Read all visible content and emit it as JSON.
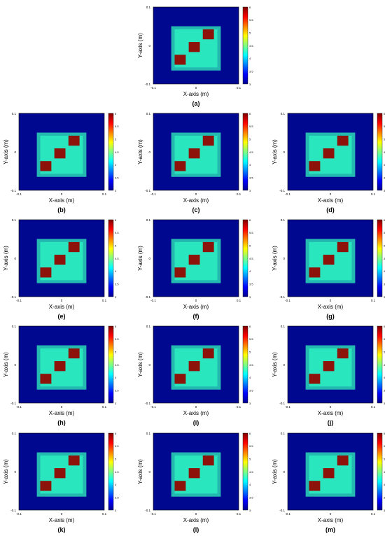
{
  "figure": {
    "colors": {
      "background_field": "#00088f",
      "object_region": "#29e6bf",
      "object_border": "#24b9b0",
      "diagonal_blocks": "#8d1209",
      "axis_text": "#000000"
    },
    "colorbar": {
      "ticks": [
        "6",
        "5.5",
        "5",
        "4.5",
        "4",
        "3.5",
        "3"
      ],
      "palette": [
        "#00008f",
        "#0000ff",
        "#0080ff",
        "#00ffff",
        "#80ff80",
        "#ffff00",
        "#ff8000",
        "#ff0000",
        "#800000"
      ]
    }
  },
  "chart_data": [
    {
      "type": "heatmap",
      "panel": "a",
      "caption": "(a)",
      "xlabel": "X-axis (m)",
      "ylabel": "Y-axis (m)",
      "xlim": [
        -0.1,
        0.1
      ],
      "ylim": [
        -0.1,
        0.1
      ],
      "xticks": [
        "-0.1",
        "0",
        "0.1"
      ],
      "yticks": [
        "0.1",
        "0",
        "-0.1"
      ],
      "colorbar_range": [
        3,
        6
      ]
    },
    {
      "type": "heatmap",
      "panel": "b",
      "caption": "(b)",
      "xlabel": "X-axis (m)",
      "ylabel": "Y-axis (m)",
      "xlim": [
        -0.1,
        0.1
      ],
      "ylim": [
        -0.1,
        0.1
      ],
      "xticks": [
        "-0.1",
        "0",
        "0.1"
      ],
      "yticks": [
        "0.1",
        "0",
        "-0.1"
      ],
      "colorbar_range": [
        3,
        6
      ]
    },
    {
      "type": "heatmap",
      "panel": "c",
      "caption": "(c)",
      "xlabel": "X-axis (m)",
      "ylabel": "Y-axis (m)",
      "xlim": [
        -0.1,
        0.1
      ],
      "ylim": [
        -0.1,
        0.1
      ],
      "xticks": [
        "-0.1",
        "0",
        "0.1"
      ],
      "yticks": [
        "0.1",
        "0",
        "-0.1"
      ],
      "colorbar_range": [
        3,
        6
      ]
    },
    {
      "type": "heatmap",
      "panel": "d",
      "caption": "(d)",
      "xlabel": "X-axis (m)",
      "ylabel": "Y-axis (m)",
      "xlim": [
        -0.1,
        0.1
      ],
      "ylim": [
        -0.1,
        0.1
      ],
      "xticks": [
        "-0.1",
        "0",
        "0.1"
      ],
      "yticks": [
        "0.1",
        "0",
        "-0.1"
      ],
      "colorbar_range": [
        3,
        6
      ]
    },
    {
      "type": "heatmap",
      "panel": "e",
      "caption": "(e)",
      "xlabel": "X-axis (m)",
      "ylabel": "Y-axis (m)",
      "xlim": [
        -0.1,
        0.1
      ],
      "ylim": [
        -0.1,
        0.1
      ],
      "xticks": [
        "-0.1",
        "0",
        "0.1"
      ],
      "yticks": [
        "0.1",
        "0",
        "-0.1"
      ],
      "colorbar_range": [
        3,
        6
      ]
    },
    {
      "type": "heatmap",
      "panel": "f",
      "caption": "(f)",
      "xlabel": "X-axis (m)",
      "ylabel": "Y-axis (m)",
      "xlim": [
        -0.1,
        0.1
      ],
      "ylim": [
        -0.1,
        0.1
      ],
      "xticks": [
        "-0.1",
        "0",
        "0.1"
      ],
      "yticks": [
        "0.1",
        "0",
        "-0.1"
      ],
      "colorbar_range": [
        3,
        6
      ]
    },
    {
      "type": "heatmap",
      "panel": "g",
      "caption": "(g)",
      "xlabel": "X-axis (m)",
      "ylabel": "Y-axis (m)",
      "xlim": [
        -0.1,
        0.1
      ],
      "ylim": [
        -0.1,
        0.1
      ],
      "xticks": [
        "-0.1",
        "0",
        "0.1"
      ],
      "yticks": [
        "0.1",
        "0",
        "-0.1"
      ],
      "colorbar_range": [
        3,
        6
      ]
    },
    {
      "type": "heatmap",
      "panel": "h",
      "caption": "(h)",
      "xlabel": "X-axis (m)",
      "ylabel": "Y-axis (m)",
      "xlim": [
        -0.1,
        0.1
      ],
      "ylim": [
        -0.1,
        0.1
      ],
      "xticks": [
        "-0.1",
        "0",
        "0.1"
      ],
      "yticks": [
        "0.1",
        "0",
        "-0.1"
      ],
      "colorbar_range": [
        3,
        6
      ]
    },
    {
      "type": "heatmap",
      "panel": "i",
      "caption": "(i)",
      "xlabel": "X-axis (m)",
      "ylabel": "Y-axis (m)",
      "xlim": [
        -0.1,
        0.1
      ],
      "ylim": [
        -0.1,
        0.1
      ],
      "xticks": [
        "-0.1",
        "0",
        "0.1"
      ],
      "yticks": [
        "0.1",
        "0",
        "-0.1"
      ],
      "colorbar_range": [
        3,
        6
      ]
    },
    {
      "type": "heatmap",
      "panel": "j",
      "caption": "(j)",
      "xlabel": "X-axis (m)",
      "ylabel": "Y-axis (m)",
      "xlim": [
        -0.1,
        0.1
      ],
      "ylim": [
        -0.1,
        0.1
      ],
      "xticks": [
        "-0.1",
        "0",
        "0.1"
      ],
      "yticks": [
        "0.1",
        "0",
        "-0.1"
      ],
      "colorbar_range": [
        3,
        6
      ]
    },
    {
      "type": "heatmap",
      "panel": "k",
      "caption": "(k)",
      "xlabel": "X-axis (m)",
      "ylabel": "Y-axis (m)",
      "xlim": [
        -0.1,
        0.1
      ],
      "ylim": [
        -0.1,
        0.1
      ],
      "xticks": [
        "-0.1",
        "0",
        "0.1"
      ],
      "yticks": [
        "0.1",
        "0",
        "-0.1"
      ],
      "colorbar_range": [
        3,
        6
      ]
    },
    {
      "type": "heatmap",
      "panel": "l",
      "caption": "(l)",
      "xlabel": "X-axis (m)",
      "ylabel": "Y-axis (m)",
      "xlim": [
        -0.1,
        0.1
      ],
      "ylim": [
        -0.1,
        0.1
      ],
      "xticks": [
        "-0.1",
        "0",
        "0.1"
      ],
      "yticks": [
        "0.1",
        "0",
        "-0.1"
      ],
      "colorbar_range": [
        3,
        6
      ]
    },
    {
      "type": "heatmap",
      "panel": "m",
      "caption": "(m)",
      "xlabel": "X-axis (m)",
      "ylabel": "Y-axis (m)",
      "xlim": [
        -0.1,
        0.1
      ],
      "ylim": [
        -0.1,
        0.1
      ],
      "xticks": [
        "-0.1",
        "0",
        "0.1"
      ],
      "yticks": [
        "0.1",
        "0",
        "-0.1"
      ],
      "colorbar_range": [
        3,
        6
      ]
    }
  ]
}
